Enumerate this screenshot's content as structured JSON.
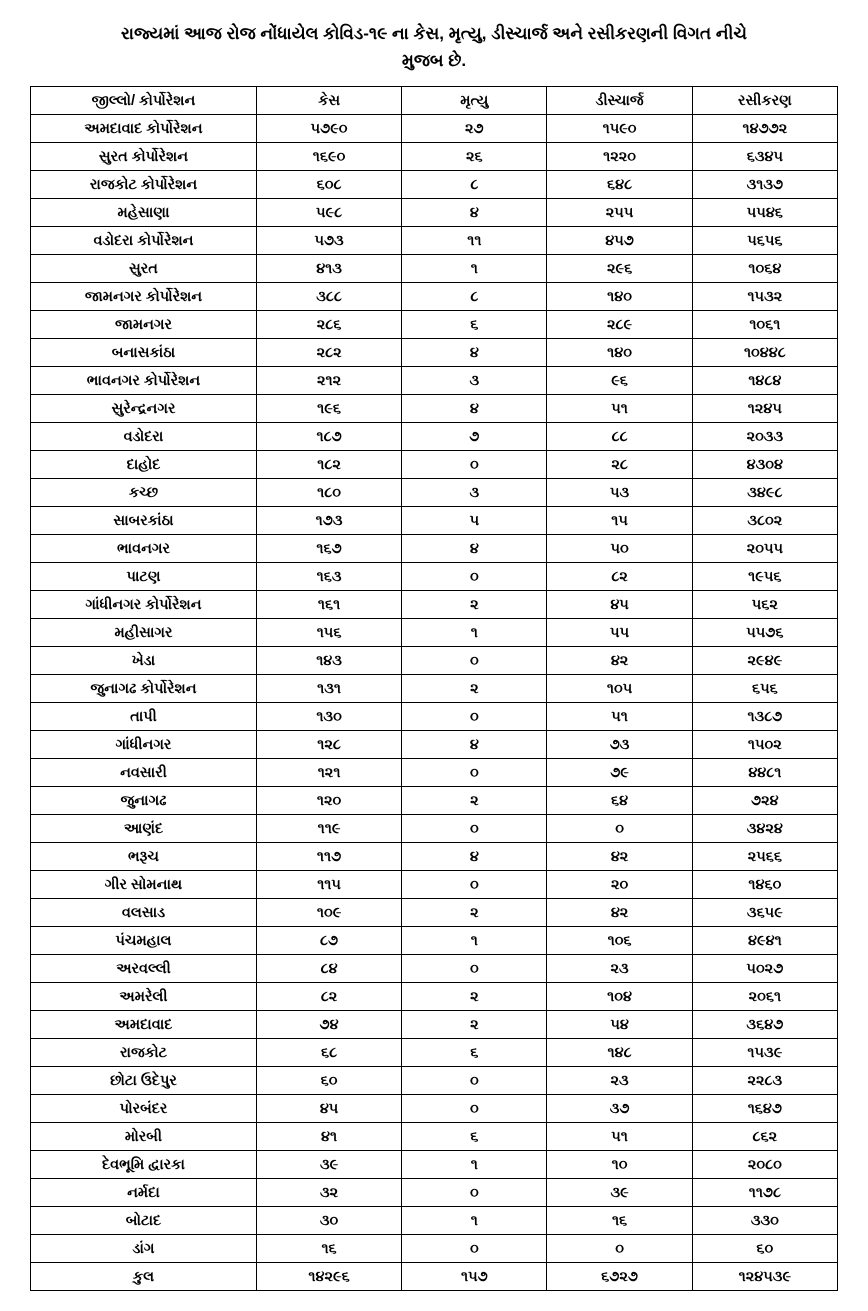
{
  "title_line1": "રાજ્યમાં આજ રોજ નોંધાયેલ કોવિડ-૧૯ ના કેસ, મૃત્યુ, ડીસ્ચાર્જ  અને  રસીકરણની વિગત નીચે",
  "title_line2": "મુજબ છે.",
  "headers": {
    "district": "જીલ્લો/ કોર્પોરેશન",
    "cases": "કેસ",
    "deaths": "મૃત્યુ",
    "discharge": "ડીસ્ચાર્જ",
    "vaccination": "રસીકરણ"
  },
  "rows": [
    {
      "district": "અમદાવાદ કોર્પોરેશન",
      "cases": "૫૭૯૦",
      "deaths": "૨૭",
      "discharge": "૧૫૯૦",
      "vaccination": "૧૪૭૭૨"
    },
    {
      "district": "સુરત કોર્પોરેશન",
      "cases": "૧૬૯૦",
      "deaths": "૨૬",
      "discharge": "૧૨૨૦",
      "vaccination": "૬૩૪૫"
    },
    {
      "district": "રાજકોટ કોર્પોરેશન",
      "cases": "૬૦૮",
      "deaths": "૮",
      "discharge": "૬૪૮",
      "vaccination": "૩૧૩૭"
    },
    {
      "district": "મહેસાણા",
      "cases": "૫૯૮",
      "deaths": "૪",
      "discharge": "૨૫૫",
      "vaccination": "૫૫૪૬"
    },
    {
      "district": "વડોદરા કોર્પોરેશન",
      "cases": "૫૭૩",
      "deaths": "૧૧",
      "discharge": "૪૫૭",
      "vaccination": "૫૬૫૬"
    },
    {
      "district": "સુરત",
      "cases": "૪૧૩",
      "deaths": "૧",
      "discharge": "૨૯૬",
      "vaccination": "૧૦૬૪"
    },
    {
      "district": "જામનગર કોર્પોરેશન",
      "cases": "૩૮૮",
      "deaths": "૮",
      "discharge": "૧૪૦",
      "vaccination": "૧૫૩૨"
    },
    {
      "district": "જામનગર",
      "cases": "૨૮૬",
      "deaths": "૬",
      "discharge": "૨૮૯",
      "vaccination": "૧૦૬૧"
    },
    {
      "district": "બનાસકાંઠા",
      "cases": "૨૮૨",
      "deaths": "૪",
      "discharge": "૧૪૦",
      "vaccination": "૧૦૪૪૮"
    },
    {
      "district": "ભાવનગર કોર્પોરેશન",
      "cases": "૨૧૨",
      "deaths": "૩",
      "discharge": "૯૬",
      "vaccination": "૧૪૮૪"
    },
    {
      "district": "સુરેન્દ્રનગર",
      "cases": "૧૯૬",
      "deaths": "૪",
      "discharge": "૫૧",
      "vaccination": "૧૨૪૫"
    },
    {
      "district": "વડોદરા",
      "cases": "૧૮૭",
      "deaths": "૭",
      "discharge": "૮૮",
      "vaccination": "૨૦૩૩"
    },
    {
      "district": "દાહોદ",
      "cases": "૧૮૨",
      "deaths": "૦",
      "discharge": "૨૮",
      "vaccination": "૪૩૦૪"
    },
    {
      "district": "કચ્છ",
      "cases": "૧૮૦",
      "deaths": "૩",
      "discharge": "૫૩",
      "vaccination": "૩૪૯૮"
    },
    {
      "district": "સાબરકાંઠા",
      "cases": "૧૭૩",
      "deaths": "૫",
      "discharge": "૧૫",
      "vaccination": "૩૮૦૨"
    },
    {
      "district": "ભાવનગર",
      "cases": "૧૬૭",
      "deaths": "૪",
      "discharge": "૫૦",
      "vaccination": "૨૦૫૫"
    },
    {
      "district": "પાટણ",
      "cases": "૧૬૩",
      "deaths": "૦",
      "discharge": "૮૨",
      "vaccination": "૧૯૫૬"
    },
    {
      "district": "ગાંધીનગર કોર્પોરેશન",
      "cases": "૧૬૧",
      "deaths": "૨",
      "discharge": "૪૫",
      "vaccination": "૫૬૨"
    },
    {
      "district": "મહીસાગર",
      "cases": "૧૫૬",
      "deaths": "૧",
      "discharge": "૫૫",
      "vaccination": "૫૫૭૬"
    },
    {
      "district": "ખેડા",
      "cases": "૧૪૩",
      "deaths": "૦",
      "discharge": "૪૨",
      "vaccination": "૨૯૪૯"
    },
    {
      "district": "જુનાગઢ કોર્પોરેશન",
      "cases": "૧૩૧",
      "deaths": "૨",
      "discharge": "૧૦૫",
      "vaccination": "૬૫૬"
    },
    {
      "district": "તાપી",
      "cases": "૧૩૦",
      "deaths": "૦",
      "discharge": "૫૧",
      "vaccination": "૧૩૮૭"
    },
    {
      "district": "ગાંધીનગર",
      "cases": "૧૨૮",
      "deaths": "૪",
      "discharge": "૭૩",
      "vaccination": "૧૫૦૨"
    },
    {
      "district": "નવસારી",
      "cases": "૧૨૧",
      "deaths": "૦",
      "discharge": "૭૯",
      "vaccination": "૪૪૮૧"
    },
    {
      "district": "જુનાગઢ",
      "cases": "૧૨૦",
      "deaths": "૨",
      "discharge": "૬૪",
      "vaccination": "૭૨૪"
    },
    {
      "district": "આણંદ",
      "cases": "૧૧૯",
      "deaths": "૦",
      "discharge": "૦",
      "vaccination": "૩૪૨૪"
    },
    {
      "district": "ભરૂચ",
      "cases": "૧૧૭",
      "deaths": "૪",
      "discharge": "૪૨",
      "vaccination": "૨૫૬૬"
    },
    {
      "district": "ગીર સોમનાથ",
      "cases": "૧૧૫",
      "deaths": "૦",
      "discharge": "૨૦",
      "vaccination": "૧૪૬૦"
    },
    {
      "district": "વલસાડ",
      "cases": "૧૦૯",
      "deaths": "૨",
      "discharge": "૪૨",
      "vaccination": "૩૬૫૯"
    },
    {
      "district": "પંચમહાલ",
      "cases": "૮૭",
      "deaths": "૧",
      "discharge": "૧૦૬",
      "vaccination": "૪૯૪૧"
    },
    {
      "district": "અરવલ્લી",
      "cases": "૮૪",
      "deaths": "૦",
      "discharge": "૨૩",
      "vaccination": "૫૦૨૭"
    },
    {
      "district": "અમરેલી",
      "cases": "૮૨",
      "deaths": "૨",
      "discharge": "૧૦૪",
      "vaccination": "૨૦૬૧"
    },
    {
      "district": "અમદાવાદ",
      "cases": "૭૪",
      "deaths": "૨",
      "discharge": "૫૪",
      "vaccination": "૩૬૪૭"
    },
    {
      "district": "રાજકોટ",
      "cases": "૬૮",
      "deaths": "૬",
      "discharge": "૧૪૮",
      "vaccination": "૧૫૩૯"
    },
    {
      "district": "છોટા ઉદેપુર",
      "cases": "૬૦",
      "deaths": "૦",
      "discharge": "૨૩",
      "vaccination": "૨૨૮૩"
    },
    {
      "district": "પોરબંદર",
      "cases": "૪૫",
      "deaths": "૦",
      "discharge": "૩૭",
      "vaccination": "૧૬૪૭"
    },
    {
      "district": "મોરબી",
      "cases": "૪૧",
      "deaths": "૬",
      "discharge": "૫૧",
      "vaccination": "૮૬૨"
    },
    {
      "district": "દેવભૂમિ દ્વારકા",
      "cases": "૩૯",
      "deaths": "૧",
      "discharge": "૧૦",
      "vaccination": "૨૦૮૦"
    },
    {
      "district": "નર્મદા",
      "cases": "૩૨",
      "deaths": "૦",
      "discharge": "૩૯",
      "vaccination": "૧૧૭૮"
    },
    {
      "district": "બોટાદ",
      "cases": "૩૦",
      "deaths": "૧",
      "discharge": "૧૬",
      "vaccination": "૩૩૦"
    },
    {
      "district": "ડાંગ",
      "cases": "૧૬",
      "deaths": "૦",
      "discharge": "૦",
      "vaccination": "૬૦"
    },
    {
      "district": "કુલ",
      "cases": "૧૪૨૯૬",
      "deaths": "૧૫૭",
      "discharge": "૬૭૨૭",
      "vaccination": "૧૨૪૫૩૯"
    }
  ]
}
